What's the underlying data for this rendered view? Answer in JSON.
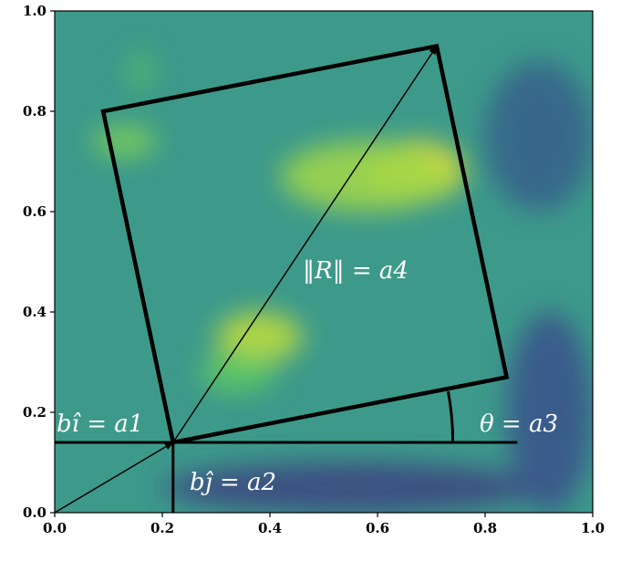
{
  "chart_data": {
    "type": "heatmap",
    "title": "",
    "xlabel": "",
    "ylabel": "",
    "xlim": [
      0.0,
      1.0
    ],
    "ylim": [
      0.0,
      1.0
    ],
    "x_ticks": [
      "0.0",
      "0.2",
      "0.4",
      "0.6",
      "0.8",
      "1.0"
    ],
    "y_ticks": [
      "0.0",
      "0.2",
      "0.4",
      "0.6",
      "0.8",
      "1.0"
    ],
    "colormap": "viridis",
    "hot_regions": [
      {
        "x": 0.67,
        "y": 0.68,
        "rx": 0.09,
        "ry": 0.06,
        "level": 1.0
      },
      {
        "x": 0.58,
        "y": 0.67,
        "rx": 0.16,
        "ry": 0.07,
        "level": 0.85
      },
      {
        "x": 0.38,
        "y": 0.35,
        "rx": 0.08,
        "ry": 0.05,
        "level": 0.9
      },
      {
        "x": 0.34,
        "y": 0.28,
        "rx": 0.07,
        "ry": 0.04,
        "level": 0.75
      },
      {
        "x": 0.13,
        "y": 0.74,
        "rx": 0.06,
        "ry": 0.03,
        "level": 0.8
      },
      {
        "x": 0.16,
        "y": 0.88,
        "rx": 0.02,
        "ry": 0.04,
        "level": 0.7
      }
    ],
    "cool_regions": [
      {
        "x": 0.55,
        "y": 0.05,
        "rx": 0.35,
        "ry": 0.05,
        "level": 0.2
      },
      {
        "x": 0.92,
        "y": 0.2,
        "rx": 0.08,
        "ry": 0.2,
        "level": 0.25
      },
      {
        "x": 0.9,
        "y": 0.75,
        "rx": 0.1,
        "ry": 0.15,
        "level": 0.3
      }
    ],
    "overlay": {
      "origin_vector": {
        "from": [
          0.0,
          0.0
        ],
        "to": [
          0.22,
          0.14
        ]
      },
      "horizontal_line": {
        "y": 0.14,
        "x_from": 0.0,
        "x_to": 0.86
      },
      "vertical_line": {
        "x": 0.22,
        "y_from": 0.0,
        "y_to": 0.14
      },
      "rectangle": [
        [
          0.22,
          0.14
        ],
        [
          0.09,
          0.8
        ],
        [
          0.71,
          0.93
        ],
        [
          0.84,
          0.27
        ]
      ],
      "diagonal_vector": {
        "from": [
          0.22,
          0.14
        ],
        "to": [
          0.71,
          0.93
        ]
      },
      "angle_arc": {
        "center": [
          0.22,
          0.14
        ],
        "theta_deg": 10.5,
        "radius_x": 0.52
      }
    },
    "annotations": {
      "a1": "bî = a1",
      "a2": "bĵ = a2",
      "a3": "θ = a3",
      "a4": "‖R‖ = a4"
    }
  }
}
